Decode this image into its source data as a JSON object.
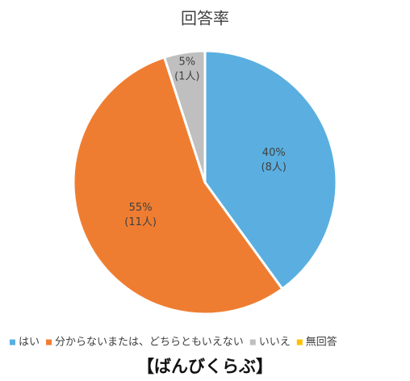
{
  "chart_data": {
    "type": "pie",
    "title": "回答率",
    "categories": [
      "はい",
      "分からないまたは、どちらともいえない",
      "いいえ",
      "無回答"
    ],
    "values": [
      40,
      55,
      5,
      0
    ],
    "value_labels": [
      "40%",
      "55%",
      "5%",
      null
    ],
    "counts": [
      8,
      11,
      1,
      0
    ],
    "count_labels": [
      "(8人)",
      "(11人)",
      "(1人)",
      null
    ],
    "colors": [
      "#5aafe0",
      "#ef7d31",
      "#bfbfbf",
      "#ffc000"
    ],
    "legend": "bottom",
    "caption": "【ばんびくらぶ】"
  }
}
